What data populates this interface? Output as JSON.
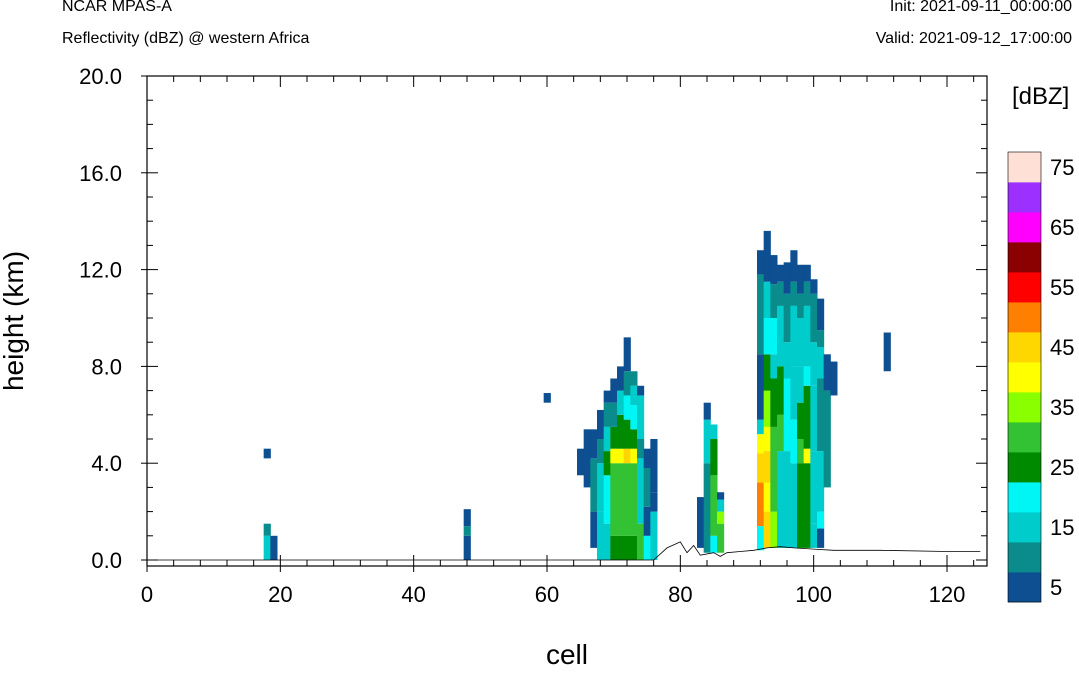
{
  "header": {
    "title": "NCAR MPAS-A",
    "subtitle": "Reflectivity (dBZ) @ western Africa",
    "init": "Init: 2021-09-11_00:00:00",
    "valid": "Valid: 2021-09-12_17:00:00"
  },
  "chart_data": {
    "type": "heatmap",
    "xlabel": "cell",
    "ylabel": "height (km)",
    "xlim": [
      0,
      126
    ],
    "ylim": [
      0,
      20
    ],
    "x_ticks": [
      0,
      20,
      40,
      60,
      80,
      100,
      120
    ],
    "x_tick_labels": [
      "0",
      "20",
      "40",
      "60",
      "80",
      "100",
      "120"
    ],
    "y_ticks": [
      0,
      4,
      8,
      12,
      16,
      20
    ],
    "y_tick_labels": [
      "0.0",
      "4.0",
      "8.0",
      "12.0",
      "16.0",
      "20.0"
    ],
    "legend": {
      "title": "[dBZ]",
      "position": "right",
      "levels": [
        5,
        10,
        15,
        20,
        25,
        30,
        35,
        40,
        45,
        50,
        55,
        60,
        65,
        70,
        75
      ],
      "colors": [
        "#0d4f91",
        "#0a8c8c",
        "#00cccc",
        "#00f5f5",
        "#008a00",
        "#33c233",
        "#8aff00",
        "#ffff00",
        "#ffd700",
        "#ff7f00",
        "#ff0000",
        "#8b0000",
        "#ff00ff",
        "#9b30ff",
        "#ffe0d6"
      ],
      "labels": [
        "5",
        "15",
        "25",
        "35",
        "45",
        "55",
        "65",
        "75"
      ]
    },
    "terrain": [
      [
        0,
        0.0
      ],
      [
        76,
        0.0
      ],
      [
        78,
        0.5
      ],
      [
        80,
        0.75
      ],
      [
        81,
        0.3
      ],
      [
        82,
        0.6
      ],
      [
        83,
        0.2
      ],
      [
        85,
        0.3
      ],
      [
        86,
        0.15
      ],
      [
        87,
        0.3
      ],
      [
        89,
        0.35
      ],
      [
        91,
        0.4
      ],
      [
        93,
        0.5
      ],
      [
        95,
        0.55
      ],
      [
        97,
        0.5
      ],
      [
        100,
        0.45
      ],
      [
        103,
        0.4
      ],
      [
        110,
        0.4
      ],
      [
        120,
        0.35
      ],
      [
        125,
        0.35
      ]
    ],
    "columns": [
      {
        "x": 18,
        "segments": [
          [
            0,
            1,
            15
          ],
          [
            1,
            1.5,
            10
          ],
          [
            4.2,
            4.6,
            5
          ]
        ]
      },
      {
        "x": 19,
        "segments": [
          [
            0,
            1.0,
            5
          ]
        ]
      },
      {
        "x": 48,
        "segments": [
          [
            0,
            1.0,
            5
          ],
          [
            1.0,
            1.4,
            10
          ],
          [
            1.4,
            2.1,
            5
          ]
        ]
      },
      {
        "x": 60,
        "segments": [
          [
            6.5,
            6.9,
            5
          ]
        ]
      },
      {
        "x": 65,
        "segments": [
          [
            3.5,
            4.6,
            5
          ]
        ]
      },
      {
        "x": 66,
        "segments": [
          [
            3.0,
            5.4,
            5
          ]
        ]
      },
      {
        "x": 67,
        "segments": [
          [
            0.5,
            2.0,
            5
          ],
          [
            2.0,
            4.2,
            10
          ],
          [
            4.2,
            5.4,
            5
          ]
        ]
      },
      {
        "x": 68,
        "segments": [
          [
            0,
            2.0,
            15
          ],
          [
            2.0,
            4.0,
            15
          ],
          [
            4.0,
            5.0,
            10
          ],
          [
            5.0,
            6.2,
            5
          ]
        ]
      },
      {
        "x": 69,
        "segments": [
          [
            0,
            1.5,
            15
          ],
          [
            1.5,
            3.5,
            20
          ],
          [
            3.5,
            4.5,
            25
          ],
          [
            4.5,
            5.5,
            15
          ],
          [
            5.5,
            6.5,
            10
          ],
          [
            6.5,
            7.0,
            5
          ]
        ]
      },
      {
        "x": 70,
        "segments": [
          [
            0,
            1.0,
            25
          ],
          [
            1.0,
            4.0,
            30
          ],
          [
            4.0,
            4.6,
            40
          ],
          [
            4.6,
            5.5,
            25
          ],
          [
            5.5,
            6.5,
            10
          ],
          [
            6.5,
            7.5,
            5
          ]
        ]
      },
      {
        "x": 71,
        "segments": [
          [
            0,
            1.0,
            25
          ],
          [
            1.0,
            4.0,
            30
          ],
          [
            4.0,
            4.6,
            40
          ],
          [
            4.6,
            6.0,
            25
          ],
          [
            6.0,
            7.0,
            15
          ],
          [
            7.0,
            8.0,
            5
          ]
        ]
      },
      {
        "x": 72,
        "segments": [
          [
            0,
            1.0,
            25
          ],
          [
            1.0,
            4.0,
            30
          ],
          [
            4.0,
            4.6,
            45
          ],
          [
            4.6,
            5.8,
            25
          ],
          [
            5.8,
            6.8,
            20
          ],
          [
            6.8,
            7.8,
            10
          ],
          [
            7.8,
            9.2,
            5
          ]
        ]
      },
      {
        "x": 73,
        "segments": [
          [
            0,
            1.0,
            25
          ],
          [
            1.0,
            4.0,
            30
          ],
          [
            4.0,
            4.6,
            40
          ],
          [
            4.6,
            5.4,
            25
          ],
          [
            5.4,
            6.4,
            20
          ],
          [
            6.4,
            7.2,
            15
          ],
          [
            7.2,
            7.8,
            10
          ]
        ]
      },
      {
        "x": 74,
        "segments": [
          [
            0,
            1.5,
            30
          ],
          [
            1.5,
            4.2,
            15
          ],
          [
            4.2,
            5.0,
            10
          ],
          [
            5.0,
            6.8,
            15
          ],
          [
            6.8,
            7.2,
            5
          ]
        ]
      },
      {
        "x": 75,
        "segments": [
          [
            0,
            1.0,
            20
          ],
          [
            1.0,
            2.2,
            5
          ],
          [
            2.2,
            3.8,
            10
          ],
          [
            3.8,
            4.6,
            5
          ]
        ]
      },
      {
        "x": 76,
        "segments": [
          [
            0,
            2.0,
            15
          ],
          [
            2.0,
            2.8,
            5
          ],
          [
            2.8,
            5.0,
            5
          ]
        ]
      },
      {
        "x": 83,
        "segments": [
          [
            0.5,
            2.6,
            5
          ]
        ]
      },
      {
        "x": 84,
        "segments": [
          [
            0.3,
            4.0,
            10
          ],
          [
            4.0,
            5.8,
            15
          ],
          [
            5.8,
            6.5,
            5
          ]
        ]
      },
      {
        "x": 85,
        "segments": [
          [
            0.3,
            1.0,
            20
          ],
          [
            1.0,
            3.5,
            30
          ],
          [
            3.5,
            5.0,
            25
          ],
          [
            5.0,
            5.6,
            15
          ]
        ]
      },
      {
        "x": 86,
        "segments": [
          [
            0.3,
            1.5,
            30
          ],
          [
            1.5,
            2.0,
            35
          ],
          [
            2.0,
            2.5,
            15
          ],
          [
            2.5,
            2.8,
            5
          ]
        ]
      },
      {
        "x": 92,
        "segments": [
          [
            0.4,
            1.4,
            20
          ],
          [
            1.4,
            3.2,
            50
          ],
          [
            3.2,
            4.4,
            45
          ],
          [
            4.4,
            5.2,
            40
          ],
          [
            5.2,
            5.8,
            15
          ],
          [
            5.8,
            8.5,
            5
          ],
          [
            8.5,
            11.8,
            10
          ],
          [
            11.8,
            12.8,
            5
          ]
        ]
      },
      {
        "x": 93,
        "segments": [
          [
            0.5,
            2.0,
            45
          ],
          [
            2.0,
            3.2,
            40
          ],
          [
            3.2,
            4.5,
            45
          ],
          [
            4.5,
            5.5,
            40
          ],
          [
            5.5,
            7.0,
            35
          ],
          [
            7.0,
            8.5,
            25
          ],
          [
            8.5,
            10.0,
            20
          ],
          [
            10.0,
            11.5,
            15
          ],
          [
            11.5,
            13.6,
            5
          ]
        ]
      },
      {
        "x": 94,
        "segments": [
          [
            0.5,
            2.0,
            35
          ],
          [
            2.0,
            5.5,
            30
          ],
          [
            5.5,
            7.5,
            25
          ],
          [
            7.5,
            8.5,
            15
          ],
          [
            8.5,
            10.0,
            20
          ],
          [
            10.0,
            11.4,
            10
          ],
          [
            11.4,
            12.6,
            5
          ]
        ]
      },
      {
        "x": 95,
        "segments": [
          [
            0.5,
            4.5,
            15
          ],
          [
            4.5,
            6.0,
            30
          ],
          [
            6.0,
            8.0,
            25
          ],
          [
            8.0,
            10.5,
            15
          ],
          [
            10.5,
            11.5,
            10
          ],
          [
            11.5,
            12.2,
            5
          ]
        ]
      },
      {
        "x": 96,
        "segments": [
          [
            0.5,
            4.5,
            15
          ],
          [
            4.5,
            7.5,
            20
          ],
          [
            7.5,
            9.0,
            15
          ],
          [
            9.0,
            11.0,
            10
          ],
          [
            11.0,
            12.3,
            5
          ]
        ]
      },
      {
        "x": 97,
        "segments": [
          [
            0.5,
            4.0,
            15
          ],
          [
            4.0,
            5.8,
            20
          ],
          [
            5.8,
            8.0,
            15
          ],
          [
            8.0,
            10.5,
            15
          ],
          [
            10.5,
            11.5,
            10
          ],
          [
            11.5,
            12.8,
            5
          ]
        ]
      },
      {
        "x": 98,
        "segments": [
          [
            0.5,
            4.0,
            25
          ],
          [
            4.0,
            5.0,
            30
          ],
          [
            5.0,
            6.5,
            25
          ],
          [
            6.5,
            8.0,
            15
          ],
          [
            8.0,
            10.0,
            15
          ],
          [
            10.0,
            11.0,
            10
          ],
          [
            11.0,
            12.2,
            5
          ]
        ]
      },
      {
        "x": 99,
        "segments": [
          [
            0.5,
            4.0,
            25
          ],
          [
            4.0,
            4.6,
            40
          ],
          [
            4.6,
            7.2,
            25
          ],
          [
            7.2,
            8.0,
            20
          ],
          [
            8.0,
            10.5,
            15
          ],
          [
            10.5,
            11.5,
            10
          ],
          [
            11.5,
            12.2,
            5
          ]
        ]
      },
      {
        "x": 100,
        "segments": [
          [
            0.5,
            1.5,
            15
          ],
          [
            1.5,
            4.5,
            15
          ],
          [
            4.5,
            7.2,
            15
          ],
          [
            7.2,
            9.0,
            15
          ],
          [
            9.0,
            10.0,
            10
          ],
          [
            10.0,
            11.0,
            10
          ],
          [
            11.0,
            11.6,
            5
          ]
        ]
      },
      {
        "x": 101,
        "segments": [
          [
            0.5,
            1.3,
            5
          ],
          [
            1.3,
            2.0,
            20
          ],
          [
            2.0,
            4.5,
            15
          ],
          [
            4.5,
            7.5,
            10
          ],
          [
            7.5,
            8.8,
            15
          ],
          [
            8.8,
            9.5,
            10
          ],
          [
            9.5,
            10.8,
            5
          ]
        ]
      },
      {
        "x": 102,
        "segments": [
          [
            3.0,
            5.0,
            10
          ],
          [
            5.0,
            7.0,
            10
          ],
          [
            7.0,
            8.5,
            5
          ]
        ]
      },
      {
        "x": 103,
        "segments": [
          [
            6.8,
            8.2,
            5
          ]
        ]
      },
      {
        "x": 111,
        "segments": [
          [
            7.8,
            9.4,
            5
          ]
        ]
      }
    ]
  }
}
